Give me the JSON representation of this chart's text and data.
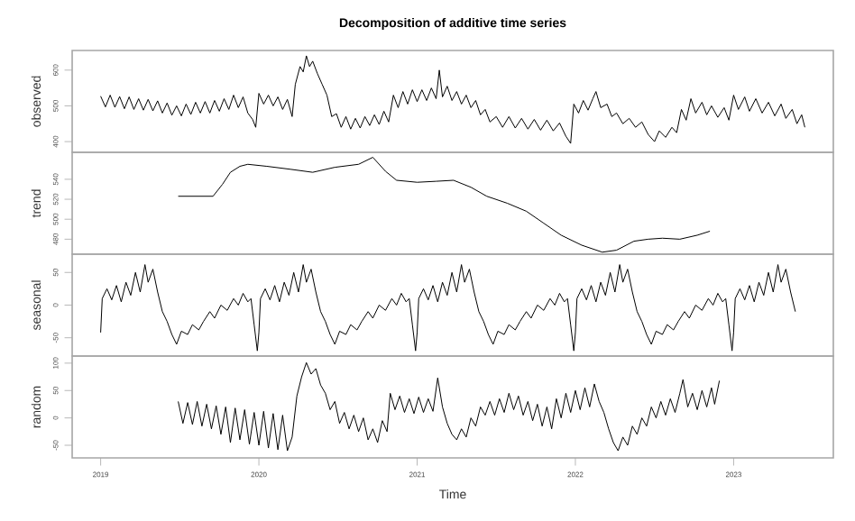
{
  "chart_data": [
    {
      "type": "line",
      "title": "Decomposition of additive time series",
      "ylabel": "observed",
      "color": "#000000",
      "marker": "none",
      "tick_labels": "y",
      "xlim": [
        2018.82,
        2023.63
      ],
      "ylim": [
        370,
        655
      ],
      "yticks": [
        400,
        500,
        600
      ],
      "x": [
        2019.0,
        2019.03,
        2019.06,
        2019.09,
        2019.12,
        2019.15,
        2019.18,
        2019.21,
        2019.24,
        2019.27,
        2019.3,
        2019.33,
        2019.36,
        2019.39,
        2019.42,
        2019.45,
        2019.48,
        2019.51,
        2019.54,
        2019.57,
        2019.6,
        2019.63,
        2019.66,
        2019.69,
        2019.72,
        2019.75,
        2019.78,
        2019.81,
        2019.84,
        2019.87,
        2019.9,
        2019.93,
        2019.96,
        2019.98,
        2020.0,
        2020.03,
        2020.06,
        2020.09,
        2020.12,
        2020.15,
        2020.18,
        2020.21,
        2020.23,
        2020.26,
        2020.28,
        2020.3,
        2020.32,
        2020.34,
        2020.37,
        2020.4,
        2020.43,
        2020.46,
        2020.49,
        2020.52,
        2020.55,
        2020.58,
        2020.61,
        2020.64,
        2020.67,
        2020.7,
        2020.73,
        2020.76,
        2020.79,
        2020.82,
        2020.85,
        2020.88,
        2020.91,
        2020.94,
        2020.97,
        2021.0,
        2021.03,
        2021.06,
        2021.09,
        2021.12,
        2021.14,
        2021.16,
        2021.19,
        2021.22,
        2021.25,
        2021.28,
        2021.31,
        2021.34,
        2021.37,
        2021.4,
        2021.43,
        2021.46,
        2021.5,
        2021.54,
        2021.58,
        2021.62,
        2021.66,
        2021.7,
        2021.74,
        2021.78,
        2021.82,
        2021.86,
        2021.9,
        2021.94,
        2021.97,
        2021.99,
        2022.02,
        2022.05,
        2022.08,
        2022.11,
        2022.13,
        2022.16,
        2022.2,
        2022.23,
        2022.26,
        2022.3,
        2022.34,
        2022.38,
        2022.42,
        2022.46,
        2022.5,
        2022.53,
        2022.57,
        2022.61,
        2022.64,
        2022.67,
        2022.7,
        2022.73,
        2022.76,
        2022.8,
        2022.83,
        2022.86,
        2022.9,
        2022.94,
        2022.97,
        2023.0,
        2023.03,
        2023.07,
        2023.1,
        2023.14,
        2023.18,
        2023.22,
        2023.26,
        2023.3,
        2023.33,
        2023.37,
        2023.4,
        2023.43,
        2023.45
      ],
      "values": [
        527,
        497,
        530,
        496,
        526,
        492,
        525,
        490,
        520,
        488,
        518,
        486,
        514,
        480,
        508,
        474,
        500,
        472,
        505,
        476,
        510,
        480,
        512,
        480,
        515,
        485,
        520,
        490,
        530,
        495,
        525,
        480,
        462,
        440,
        535,
        505,
        530,
        500,
        525,
        490,
        518,
        470,
        560,
        610,
        595,
        640,
        610,
        625,
        590,
        560,
        530,
        470,
        478,
        440,
        470,
        435,
        465,
        438,
        470,
        445,
        475,
        448,
        485,
        455,
        530,
        495,
        540,
        505,
        545,
        512,
        545,
        515,
        550,
        520,
        600,
        525,
        555,
        515,
        540,
        505,
        530,
        495,
        515,
        475,
        490,
        455,
        470,
        440,
        470,
        438,
        465,
        435,
        462,
        432,
        460,
        430,
        452,
        415,
        395,
        505,
        480,
        515,
        488,
        520,
        540,
        495,
        505,
        470,
        480,
        450,
        465,
        440,
        455,
        420,
        400,
        430,
        412,
        440,
        425,
        490,
        460,
        520,
        480,
        510,
        475,
        500,
        468,
        495,
        460,
        530,
        490,
        525,
        485,
        520,
        480,
        510,
        472,
        505,
        465,
        490,
        450,
        475,
        440
      ]
    },
    {
      "type": "line",
      "ylabel": "trend",
      "color": "#000000",
      "marker": "none",
      "tick_labels": "y",
      "xlim": [
        2018.82,
        2023.63
      ],
      "ylim": [
        465,
        567
      ],
      "yticks": [
        480,
        500,
        520,
        540
      ],
      "x": [
        2019.49,
        2019.6,
        2019.71,
        2019.77,
        2019.82,
        2019.88,
        2019.93,
        2020.05,
        2020.2,
        2020.34,
        2020.48,
        2020.63,
        2020.72,
        2020.8,
        2020.87,
        2021.0,
        2021.12,
        2021.23,
        2021.34,
        2021.44,
        2021.57,
        2021.69,
        2021.8,
        2021.91,
        2022.04,
        2022.17,
        2022.26,
        2022.37,
        2022.46,
        2022.55,
        2022.66,
        2022.77,
        2022.85
      ],
      "values": [
        523,
        523,
        523,
        535,
        547,
        553,
        555,
        553,
        550,
        547,
        552,
        555,
        562,
        548,
        539,
        537,
        538,
        539,
        532,
        523,
        516,
        508,
        496,
        484,
        474,
        467,
        469,
        478,
        480,
        481,
        480,
        484,
        488
      ]
    },
    {
      "type": "line",
      "ylabel": "seasonal",
      "color": "#000000",
      "marker": "none",
      "tick_labels": "y",
      "xlim": [
        2018.82,
        2023.63
      ],
      "ylim": [
        -78,
        78
      ],
      "yticks": [
        -50,
        0,
        50
      ],
      "x": [
        2019.0,
        2019.01,
        2019.04,
        2019.07,
        2019.1,
        2019.13,
        2019.16,
        2019.19,
        2019.22,
        2019.25,
        2019.28,
        2019.3,
        2019.33,
        2019.36,
        2019.39,
        2019.42,
        2019.45,
        2019.48,
        2019.51,
        2019.55,
        2019.58,
        2019.62,
        2019.65,
        2019.69,
        2019.72,
        2019.76,
        2019.8,
        2019.84,
        2019.87,
        2019.9,
        2019.93,
        2019.95,
        2019.97,
        2019.99,
        2020.0,
        2020.01,
        2020.04,
        2020.07,
        2020.1,
        2020.13,
        2020.16,
        2020.19,
        2020.22,
        2020.25,
        2020.28,
        2020.3,
        2020.33,
        2020.36,
        2020.39,
        2020.42,
        2020.45,
        2020.48,
        2020.51,
        2020.55,
        2020.58,
        2020.62,
        2020.65,
        2020.69,
        2020.72,
        2020.76,
        2020.8,
        2020.84,
        2020.87,
        2020.9,
        2020.93,
        2020.95,
        2020.97,
        2020.99,
        2021.0,
        2021.01,
        2021.04,
        2021.07,
        2021.1,
        2021.13,
        2021.16,
        2021.19,
        2021.22,
        2021.25,
        2021.28,
        2021.3,
        2021.33,
        2021.36,
        2021.39,
        2021.42,
        2021.45,
        2021.48,
        2021.51,
        2021.55,
        2021.58,
        2021.62,
        2021.65,
        2021.69,
        2021.72,
        2021.76,
        2021.8,
        2021.84,
        2021.87,
        2021.9,
        2021.93,
        2021.95,
        2021.97,
        2021.99,
        2022.0,
        2022.01,
        2022.04,
        2022.07,
        2022.1,
        2022.13,
        2022.16,
        2022.19,
        2022.22,
        2022.25,
        2022.28,
        2022.3,
        2022.33,
        2022.36,
        2022.39,
        2022.42,
        2022.45,
        2022.48,
        2022.51,
        2022.55,
        2022.58,
        2022.62,
        2022.65,
        2022.69,
        2022.72,
        2022.76,
        2022.8,
        2022.84,
        2022.87,
        2022.9,
        2022.93,
        2022.95,
        2022.97,
        2022.99,
        2023.0,
        2023.01,
        2023.04,
        2023.07,
        2023.1,
        2023.13,
        2023.16,
        2023.19,
        2023.22,
        2023.25,
        2023.28,
        2023.3,
        2023.33,
        2023.36,
        2023.39
      ],
      "values": [
        -42,
        10,
        25,
        8,
        30,
        5,
        35,
        15,
        50,
        20,
        62,
        35,
        55,
        20,
        -10,
        -25,
        -45,
        -60,
        -40,
        -45,
        -30,
        -38,
        -25,
        -10,
        -20,
        0,
        -8,
        10,
        0,
        18,
        5,
        10,
        -30,
        -70,
        -42,
        10,
        25,
        8,
        30,
        5,
        35,
        15,
        50,
        20,
        62,
        35,
        55,
        20,
        -10,
        -25,
        -45,
        -60,
        -40,
        -45,
        -30,
        -38,
        -25,
        -10,
        -20,
        0,
        -8,
        10,
        0,
        18,
        5,
        10,
        -30,
        -70,
        -42,
        10,
        25,
        8,
        30,
        5,
        35,
        15,
        50,
        20,
        62,
        35,
        55,
        20,
        -10,
        -25,
        -45,
        -60,
        -40,
        -45,
        -30,
        -38,
        -25,
        -10,
        -20,
        0,
        -8,
        10,
        0,
        18,
        5,
        10,
        -30,
        -70,
        -42,
        10,
        25,
        8,
        30,
        5,
        35,
        15,
        50,
        20,
        62,
        35,
        55,
        20,
        -10,
        -25,
        -45,
        -60,
        -40,
        -45,
        -30,
        -38,
        -25,
        -10,
        -20,
        0,
        -8,
        10,
        0,
        18,
        5,
        10,
        -30,
        -70,
        -42,
        10,
        25,
        8,
        30,
        5,
        35,
        15,
        50,
        20,
        62,
        35,
        55,
        20,
        -10
      ]
    },
    {
      "type": "line",
      "ylabel": "random",
      "xlabel": "Time",
      "color": "#000000",
      "marker": "none",
      "xlim": [
        2018.82,
        2023.63
      ],
      "xticks": [
        2019,
        2020,
        2021,
        2022,
        2023
      ],
      "ylim": [
        -73,
        113
      ],
      "yticks": [
        -50,
        0,
        50,
        100
      ],
      "x": [
        2019.49,
        2019.52,
        2019.55,
        2019.58,
        2019.61,
        2019.64,
        2019.67,
        2019.7,
        2019.73,
        2019.76,
        2019.79,
        2019.82,
        2019.85,
        2019.88,
        2019.91,
        2019.94,
        2019.97,
        2020.0,
        2020.03,
        2020.06,
        2020.09,
        2020.12,
        2020.15,
        2020.18,
        2020.21,
        2020.24,
        2020.27,
        2020.3,
        2020.33,
        2020.36,
        2020.39,
        2020.42,
        2020.45,
        2020.48,
        2020.51,
        2020.54,
        2020.57,
        2020.6,
        2020.63,
        2020.66,
        2020.69,
        2020.72,
        2020.75,
        2020.78,
        2020.81,
        2020.83,
        2020.86,
        2020.89,
        2020.92,
        2020.95,
        2020.98,
        2021.01,
        2021.04,
        2021.07,
        2021.1,
        2021.13,
        2021.16,
        2021.19,
        2021.22,
        2021.25,
        2021.28,
        2021.31,
        2021.34,
        2021.37,
        2021.4,
        2021.43,
        2021.46,
        2021.49,
        2021.52,
        2021.55,
        2021.58,
        2021.61,
        2021.64,
        2021.67,
        2021.7,
        2021.73,
        2021.76,
        2021.79,
        2021.82,
        2021.85,
        2021.88,
        2021.91,
        2021.94,
        2021.97,
        2022.0,
        2022.03,
        2022.06,
        2022.09,
        2022.12,
        2022.15,
        2022.18,
        2022.21,
        2022.24,
        2022.27,
        2022.3,
        2022.33,
        2022.36,
        2022.39,
        2022.42,
        2022.45,
        2022.48,
        2022.51,
        2022.54,
        2022.57,
        2022.6,
        2022.63,
        2022.66,
        2022.68,
        2022.71,
        2022.74,
        2022.77,
        2022.8,
        2022.83,
        2022.86,
        2022.88,
        2022.91
      ],
      "values": [
        30,
        -10,
        28,
        -12,
        30,
        -15,
        25,
        -20,
        22,
        -30,
        20,
        -45,
        18,
        -40,
        15,
        -48,
        10,
        -50,
        12,
        -55,
        8,
        -58,
        5,
        -60,
        -35,
        40,
        75,
        101,
        80,
        90,
        60,
        45,
        15,
        30,
        -10,
        10,
        -20,
        5,
        -25,
        0,
        -40,
        -20,
        -45,
        -5,
        -25,
        45,
        15,
        40,
        10,
        35,
        8,
        38,
        10,
        35,
        12,
        73,
        20,
        -10,
        -30,
        -40,
        -20,
        -35,
        0,
        -15,
        20,
        5,
        30,
        5,
        35,
        10,
        45,
        15,
        40,
        5,
        30,
        -5,
        25,
        -15,
        20,
        -20,
        35,
        0,
        45,
        10,
        50,
        15,
        55,
        20,
        62,
        30,
        10,
        -20,
        -45,
        -60,
        -35,
        -50,
        -15,
        -30,
        0,
        -15,
        20,
        0,
        30,
        5,
        35,
        10,
        45,
        70,
        20,
        45,
        15,
        50,
        20,
        55,
        25,
        68
      ]
    }
  ]
}
